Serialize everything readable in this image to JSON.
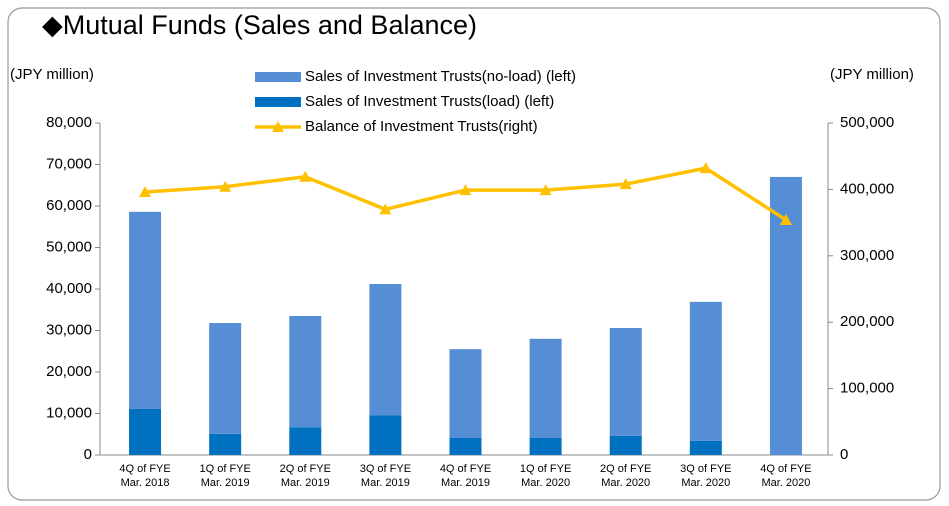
{
  "chart_data": {
    "type": "bar",
    "title": "◆Mutual Funds (Sales and Balance)",
    "y_label": "(JPY million)",
    "y2_label": "(JPY million)",
    "categories": [
      [
        "4Q of FYE",
        "Mar. 2018"
      ],
      [
        "1Q of FYE",
        "Mar. 2019"
      ],
      [
        "2Q of FYE",
        "Mar. 2019"
      ],
      [
        "3Q of FYE",
        "Mar. 2019"
      ],
      [
        "4Q of FYE",
        "Mar. 2019"
      ],
      [
        "1Q of FYE",
        "Mar. 2020"
      ],
      [
        "2Q of FYE",
        "Mar. 2020"
      ],
      [
        "3Q of FYE",
        "Mar. 2020"
      ],
      [
        "4Q of FYE",
        "Mar. 2020"
      ]
    ],
    "series": [
      {
        "name": "Sales of Investment Trusts(no-load) (left)",
        "color": "#558ed5",
        "type": "bar",
        "values": [
          47500,
          26700,
          26800,
          31600,
          21400,
          23900,
          26000,
          33500,
          67000
        ]
      },
      {
        "name": "Sales of Investment Trusts(load) (left)",
        "color": "#0070c0",
        "type": "bar",
        "values": [
          11100,
          5100,
          6700,
          9600,
          4100,
          4100,
          4600,
          3400,
          0
        ]
      },
      {
        "name": "Balance of Investment Trusts(right)",
        "color": "#ffc000",
        "type": "line",
        "axis": "y2",
        "values": [
          396000,
          404000,
          419000,
          370000,
          399000,
          399000,
          408000,
          432000,
          354000
        ]
      }
    ],
    "ylim": [
      0,
      80000
    ],
    "yticks": [
      0,
      {
        "value": 10000,
        "label": "10,000"
      },
      {
        "value": 20000,
        "label": "20,000"
      },
      {
        "value": 30000,
        "label": "30,000"
      },
      {
        "value": 40000,
        "label": "40,000"
      },
      {
        "value": 50000,
        "label": "50,000"
      },
      {
        "value": 60000,
        "label": "60,000"
      },
      {
        "value": 70000,
        "label": "70,000"
      },
      {
        "value": 80000,
        "label": "80,000"
      }
    ],
    "y2lim": [
      0,
      500000
    ],
    "y2ticks": [
      0,
      {
        "value": 100000,
        "label": "100,000"
      },
      {
        "value": 200000,
        "label": "200,000"
      },
      {
        "value": 300000,
        "label": "300,000"
      },
      {
        "value": 400000,
        "label": "400,000"
      },
      {
        "value": 500000,
        "label": "500,000"
      }
    ],
    "grid": false
  }
}
